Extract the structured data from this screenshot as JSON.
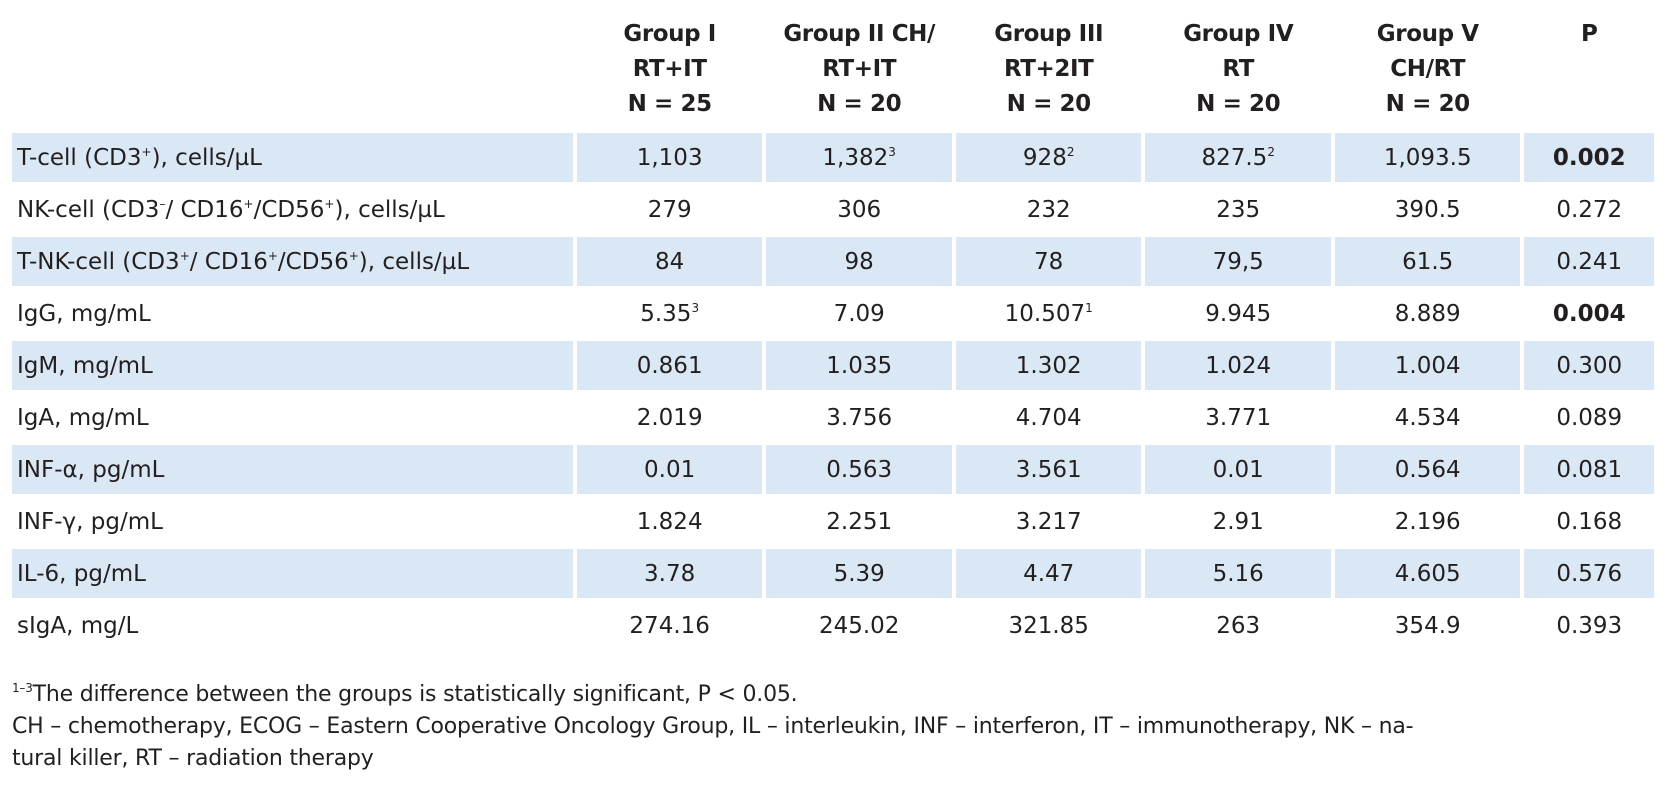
{
  "table": {
    "headers": [
      {
        "lines": [
          "",
          "",
          ""
        ]
      },
      {
        "lines": [
          "Group I",
          "RT+IT",
          "N = 25"
        ]
      },
      {
        "lines": [
          "Group II CH/",
          "RT+IT",
          "N = 20"
        ]
      },
      {
        "lines": [
          "Group III",
          "RT+2IT",
          "N = 20"
        ]
      },
      {
        "lines": [
          "Group IV",
          "RT",
          "N = 20"
        ]
      },
      {
        "lines": [
          "Group V",
          "CH/RT",
          "N = 20"
        ]
      },
      {
        "lines": [
          "P",
          "",
          ""
        ]
      }
    ],
    "rows": [
      {
        "label": "T-cell (CD3",
        "label_sup": "+",
        "label_rest": "), cells/µL",
        "cells": [
          {
            "v": "1,103",
            "s": ""
          },
          {
            "v": "1,382",
            "s": "3"
          },
          {
            "v": "928",
            "s": "2"
          },
          {
            "v": "827.5",
            "s": "2"
          },
          {
            "v": "1,093.5",
            "s": ""
          }
        ],
        "p": "0.002",
        "p_bold": true
      },
      {
        "label": "NK-cell (CD3",
        "label_sup": "–",
        "label_rest": "/ CD16",
        "label_sup2": "+",
        "label_rest2": "/CD56",
        "label_sup3": "+",
        "label_rest3": "), cells/µL",
        "cells": [
          {
            "v": "279",
            "s": ""
          },
          {
            "v": "306",
            "s": ""
          },
          {
            "v": "232",
            "s": ""
          },
          {
            "v": "235",
            "s": ""
          },
          {
            "v": "390.5",
            "s": ""
          }
        ],
        "p": "0.272",
        "p_bold": false
      },
      {
        "label": "T-NK-cell (CD3",
        "label_sup": "+",
        "label_rest": "/ CD16",
        "label_sup2": "+",
        "label_rest2": "/CD56",
        "label_sup3": "+",
        "label_rest3": "), cells/µL",
        "cells": [
          {
            "v": "84",
            "s": ""
          },
          {
            "v": "98",
            "s": ""
          },
          {
            "v": "78",
            "s": ""
          },
          {
            "v": "79,5",
            "s": ""
          },
          {
            "v": "61.5",
            "s": ""
          }
        ],
        "p": "0.241",
        "p_bold": false
      },
      {
        "label": "IgG, mg/mL",
        "cells": [
          {
            "v": "5.35",
            "s": "3"
          },
          {
            "v": "7.09",
            "s": ""
          },
          {
            "v": "10.507",
            "s": "1"
          },
          {
            "v": "9.945",
            "s": ""
          },
          {
            "v": "8.889",
            "s": ""
          }
        ],
        "p": "0.004",
        "p_bold": true
      },
      {
        "label": "IgM, mg/mL",
        "cells": [
          {
            "v": "0.861",
            "s": ""
          },
          {
            "v": "1.035",
            "s": ""
          },
          {
            "v": "1.302",
            "s": ""
          },
          {
            "v": "1.024",
            "s": ""
          },
          {
            "v": "1.004",
            "s": ""
          }
        ],
        "p": "0.300",
        "p_bold": false
      },
      {
        "label": "IgA, mg/mL",
        "cells": [
          {
            "v": "2.019",
            "s": ""
          },
          {
            "v": "3.756",
            "s": ""
          },
          {
            "v": "4.704",
            "s": ""
          },
          {
            "v": "3.771",
            "s": ""
          },
          {
            "v": "4.534",
            "s": ""
          }
        ],
        "p": "0.089",
        "p_bold": false
      },
      {
        "label": "INF-α, pg/mL",
        "cells": [
          {
            "v": "0.01",
            "s": ""
          },
          {
            "v": "0.563",
            "s": ""
          },
          {
            "v": "3.561",
            "s": ""
          },
          {
            "v": "0.01",
            "s": ""
          },
          {
            "v": "0.564",
            "s": ""
          }
        ],
        "p": "0.081",
        "p_bold": false
      },
      {
        "label": "INF-γ, pg/mL",
        "cells": [
          {
            "v": "1.824",
            "s": ""
          },
          {
            "v": "2.251",
            "s": ""
          },
          {
            "v": "3.217",
            "s": ""
          },
          {
            "v": "2.91",
            "s": ""
          },
          {
            "v": "2.196",
            "s": ""
          }
        ],
        "p": "0.168",
        "p_bold": false
      },
      {
        "label": "IL-6, pg/mL",
        "cells": [
          {
            "v": "3.78",
            "s": ""
          },
          {
            "v": "5.39",
            "s": ""
          },
          {
            "v": "4.47",
            "s": ""
          },
          {
            "v": "5.16",
            "s": ""
          },
          {
            "v": "4.605",
            "s": ""
          }
        ],
        "p": "0.576",
        "p_bold": false
      },
      {
        "label": "sIgA, mg/L",
        "cells": [
          {
            "v": "274.16",
            "s": ""
          },
          {
            "v": "245.02",
            "s": ""
          },
          {
            "v": "321.85",
            "s": ""
          },
          {
            "v": "263",
            "s": ""
          },
          {
            "v": "354.9",
            "s": ""
          }
        ],
        "p": "0.393",
        "p_bold": false
      }
    ]
  },
  "footnotes": {
    "sig_mark": "1–3",
    "sig_text": "The difference between the groups is statistically significant, P < 0.05.",
    "abbreviations_line1": "CH – chemotherapy, ECOG – Eastern Cooperative Oncology Group, IL – interleukin, INF – interferon, IT – immunotherapy, NK – na-",
    "abbreviations_line2": "tural killer, RT – radiation therapy"
  },
  "colors": {
    "row_shade": "#dae8f5",
    "text": "#231f20"
  }
}
